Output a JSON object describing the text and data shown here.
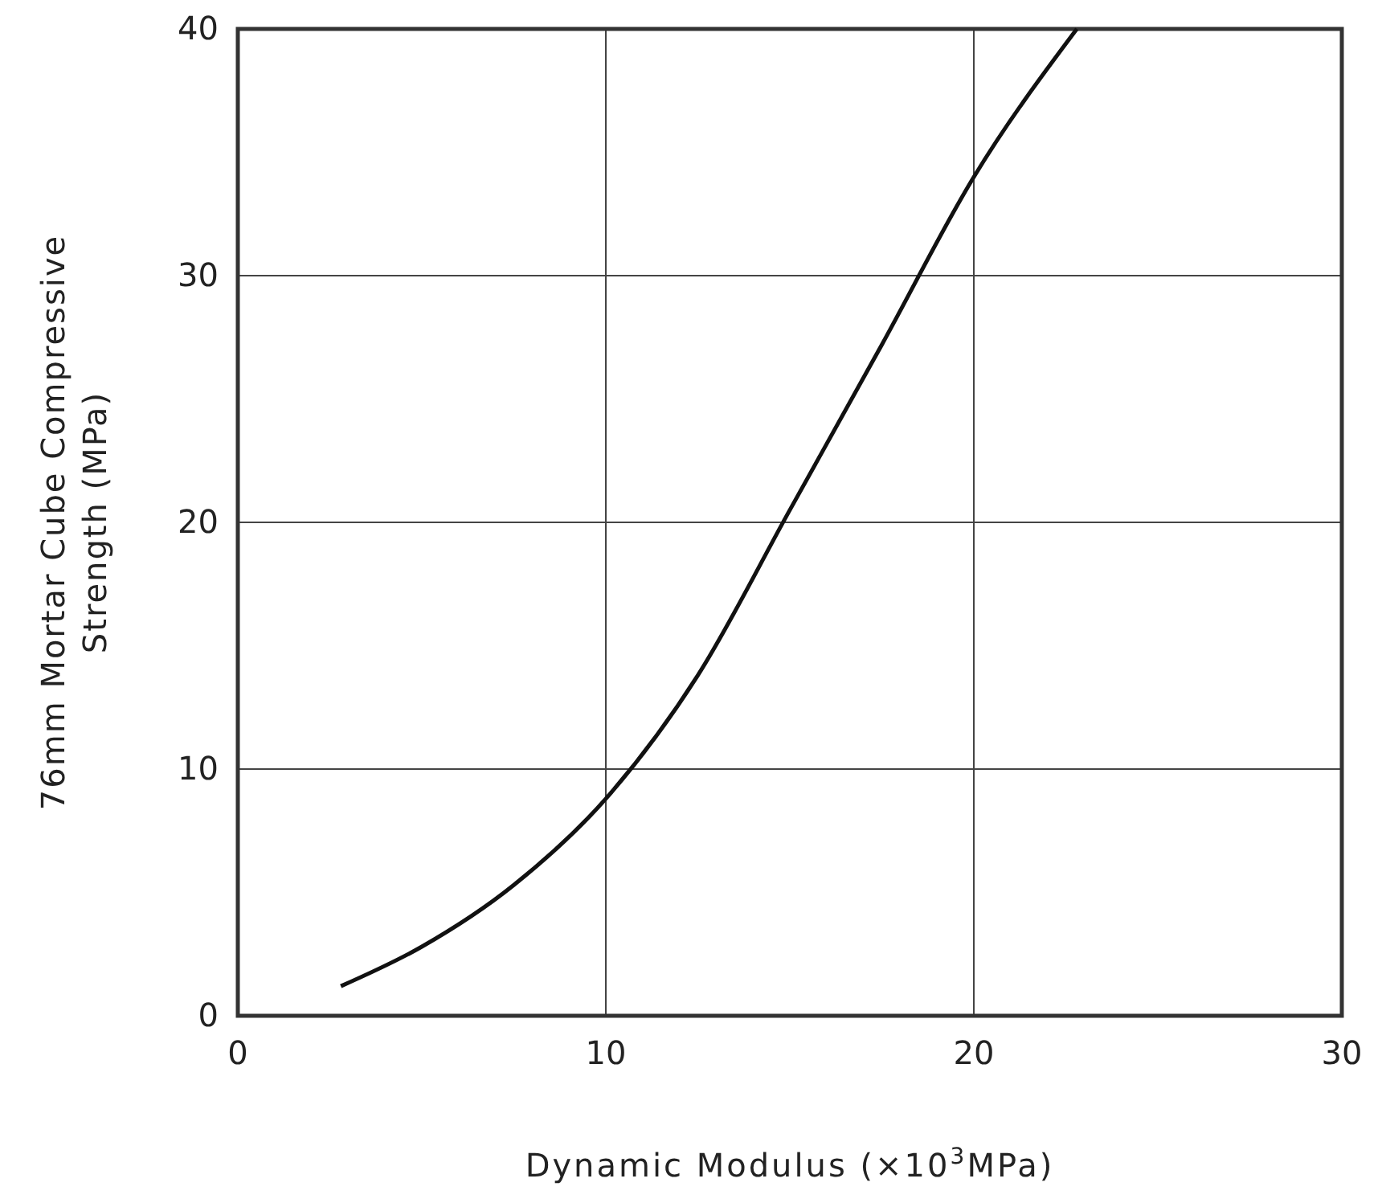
{
  "chart_data": {
    "type": "line",
    "xlabel": "Dynamic Modulus (×10$^{3}$MPa)",
    "ylabel": "76mm Mortar Cube Compressive Strength (MPa)",
    "xlim": [
      0,
      30
    ],
    "ylim": [
      0,
      40
    ],
    "xticks": [
      0,
      10,
      20,
      30
    ],
    "yticks": [
      0,
      10,
      20,
      30,
      40
    ],
    "grid": true,
    "marker": "none",
    "line_style": "solid",
    "series": [
      {
        "color": "#111111",
        "x": [
          2.8,
          5,
          7.5,
          10,
          12.5,
          15,
          17.5,
          20,
          22.8
        ],
        "values": [
          1.2,
          2.8,
          5.3,
          8.8,
          13.8,
          20.5,
          27.2,
          34,
          40
        ]
      }
    ]
  }
}
